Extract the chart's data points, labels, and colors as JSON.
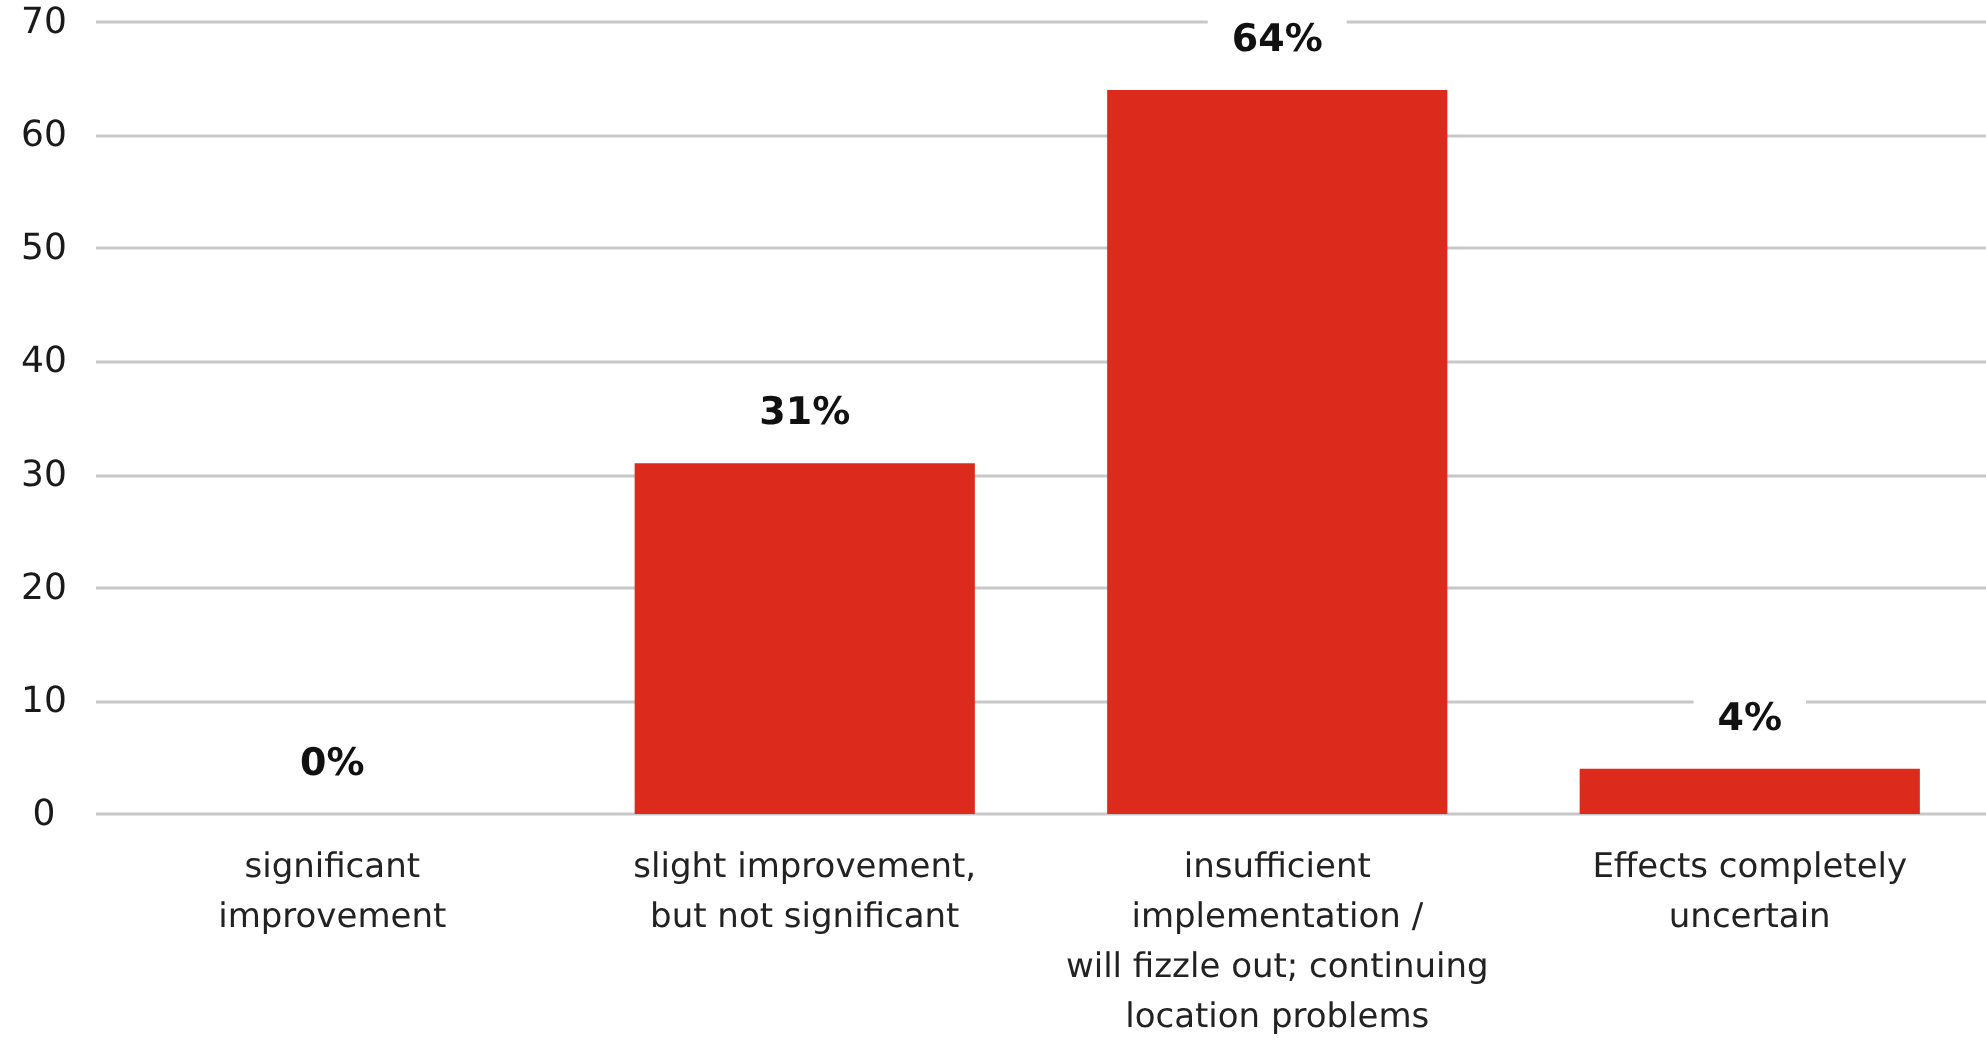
{
  "chart_data": {
    "type": "bar",
    "categories": [
      "significant\nimprovement",
      "slight improvement,\nbut not significant",
      "insufficient\nimplementation /\nwill fizzle out; continuing\nlocation problems",
      "Effects completely\nuncertain"
    ],
    "values": [
      0,
      31,
      64,
      4
    ],
    "color": "#dc2a1c",
    "value_labels": [
      "0%",
      "31%",
      "64%",
      "4%"
    ],
    "ylim": [
      0,
      70
    ],
    "yticks": [
      0,
      10,
      20,
      30,
      40,
      50,
      60,
      70
    ],
    "grid": "y"
  }
}
